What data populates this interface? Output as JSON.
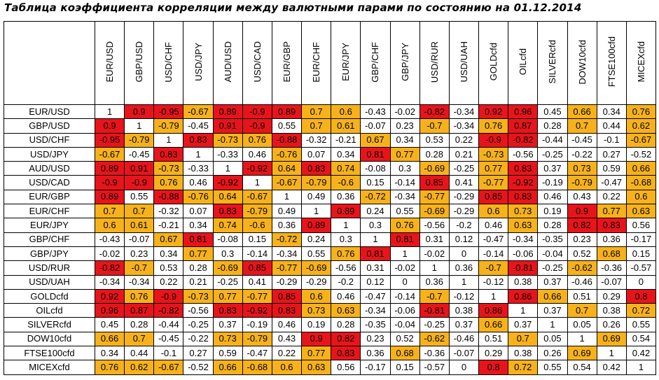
{
  "title": "Таблица коэффициента корреляции между валютными парами по состоянию на 01.12.2014",
  "highlight": [
    {
      "min": 0.8,
      "color": "#e8141b"
    },
    {
      "min": 0.6,
      "color": "#f7b21b"
    }
  ],
  "table": {
    "columns": [
      "EUR/USD",
      "GBP/USD",
      "USD/CHF",
      "USD/JPY",
      "AUD/USD",
      "USD/CAD",
      "EUR/GBP",
      "EUR/CHF",
      "EUR/JPY",
      "GBP/CHF",
      "GBP/JPY",
      "USD/RUR",
      "USD/UAH",
      "GOLDcfd",
      "OILcfd",
      "SILVERcfd",
      "DOW10cfd",
      "FTSE100cfd",
      "MICEXcfd"
    ],
    "rows": [
      {
        "label": "EUR/USD",
        "values": [
          1,
          0.9,
          -0.95,
          -0.67,
          0.89,
          -0.9,
          0.89,
          0.7,
          0.6,
          -0.43,
          -0.02,
          -0.82,
          -0.34,
          0.92,
          0.96,
          0.45,
          0.66,
          0.34,
          0.76
        ]
      },
      {
        "label": "GBP/USD",
        "values": [
          0.9,
          1,
          -0.79,
          -0.45,
          0.91,
          -0.9,
          0.55,
          0.7,
          0.61,
          -0.07,
          0.23,
          -0.7,
          -0.34,
          0.76,
          0.87,
          0.28,
          0.7,
          0.44,
          0.62
        ]
      },
      {
        "label": "USD/CHF",
        "values": [
          -0.95,
          -0.79,
          1,
          0.83,
          -0.73,
          0.76,
          -0.88,
          -0.32,
          -0.21,
          0.67,
          0.34,
          0.53,
          0.22,
          -0.9,
          -0.82,
          -0.44,
          -0.45,
          -0.1,
          -0.67
        ]
      },
      {
        "label": "USD/JPY",
        "values": [
          -0.67,
          -0.45,
          0.83,
          1,
          -0.33,
          0.46,
          -0.76,
          0.07,
          0.34,
          0.81,
          0.77,
          0.28,
          0.21,
          -0.73,
          -0.56,
          -0.25,
          -0.22,
          0.27,
          -0.52
        ]
      },
      {
        "label": "AUD/USD",
        "values": [
          0.89,
          0.91,
          -0.73,
          -0.33,
          1,
          -0.92,
          0.64,
          0.83,
          0.74,
          -0.08,
          0.3,
          -0.69,
          -0.25,
          0.77,
          0.83,
          0.37,
          0.73,
          0.59,
          0.66
        ]
      },
      {
        "label": "USD/CAD",
        "values": [
          -0.9,
          -0.9,
          0.76,
          0.46,
          -0.92,
          1,
          -0.67,
          -0.79,
          -0.6,
          0.15,
          -0.14,
          0.85,
          0.41,
          -0.77,
          -0.92,
          -0.19,
          -0.79,
          -0.47,
          -0.68
        ]
      },
      {
        "label": "EUR/GBP",
        "values": [
          0.89,
          0.55,
          -0.88,
          -0.76,
          0.64,
          -0.67,
          1,
          0.49,
          0.36,
          -0.72,
          -0.34,
          -0.77,
          -0.29,
          0.85,
          0.83,
          0.46,
          0.43,
          0.22,
          0.6
        ]
      },
      {
        "label": "EUR/CHF",
        "values": [
          0.7,
          0.7,
          -0.32,
          0.07,
          0.83,
          -0.79,
          0.49,
          1,
          0.89,
          0.24,
          0.55,
          -0.69,
          -0.29,
          0.6,
          0.73,
          0.19,
          0.9,
          0.77,
          0.63
        ]
      },
      {
        "label": "EUR/JPY",
        "values": [
          0.6,
          0.61,
          -0.21,
          0.34,
          0.74,
          -0.6,
          0.36,
          0.89,
          1,
          0.3,
          0.76,
          -0.56,
          -0.2,
          0.46,
          0.63,
          0.28,
          0.82,
          0.83,
          0.56
        ]
      },
      {
        "label": "GBP/CHF",
        "values": [
          -0.43,
          -0.07,
          0.67,
          0.81,
          -0.08,
          0.15,
          -0.72,
          0.24,
          0.3,
          1,
          0.81,
          0.31,
          0.12,
          -0.47,
          -0.34,
          -0.35,
          0.23,
          0.36,
          -0.17
        ]
      },
      {
        "label": "GBP/JPY",
        "values": [
          -0.02,
          0.23,
          0.34,
          0.77,
          0.3,
          -0.14,
          -0.34,
          0.55,
          0.76,
          0.81,
          1,
          -0.02,
          0,
          -0.14,
          -0.06,
          -0.04,
          0.52,
          0.68,
          0.15
        ]
      },
      {
        "label": "USD/RUR",
        "values": [
          -0.82,
          -0.7,
          0.53,
          0.28,
          -0.69,
          0.85,
          -0.77,
          -0.69,
          -0.56,
          0.31,
          -0.02,
          1,
          0.36,
          -0.7,
          -0.81,
          -0.25,
          -0.62,
          -0.36,
          -0.57
        ]
      },
      {
        "label": "USD/UAH",
        "values": [
          -0.34,
          -0.34,
          0.22,
          0.21,
          -0.25,
          0.41,
          -0.29,
          -0.29,
          -0.2,
          0.12,
          0,
          0.36,
          1,
          -0.12,
          0.38,
          0.37,
          -0.46,
          -0.07,
          0
        ]
      },
      {
        "label": "GOLDcfd",
        "values": [
          0.92,
          0.76,
          -0.9,
          -0.73,
          0.77,
          -0.77,
          0.85,
          0.6,
          0.46,
          -0.47,
          -0.14,
          -0.7,
          -0.12,
          1,
          0.86,
          0.66,
          0.51,
          0.29,
          0.8
        ]
      },
      {
        "label": "OILcfd",
        "values": [
          0.96,
          0.87,
          -0.82,
          -0.56,
          0.83,
          -0.92,
          0.83,
          0.73,
          0.63,
          -0.34,
          -0.06,
          -0.81,
          0.38,
          0.86,
          1,
          0.37,
          0.7,
          0.38,
          0.72
        ]
      },
      {
        "label": "SILVERcfd",
        "values": [
          0.45,
          0.28,
          -0.44,
          -0.25,
          0.37,
          -0.19,
          0.46,
          0.19,
          0.28,
          -0.35,
          -0.04,
          -0.25,
          0.37,
          0.66,
          0.37,
          1,
          0.05,
          0.26,
          0.55
        ]
      },
      {
        "label": "DOW10cfd",
        "values": [
          0.66,
          0.7,
          -0.45,
          -0.22,
          0.73,
          -0.79,
          0.43,
          0.9,
          0.82,
          0.23,
          0.52,
          -0.62,
          -0.46,
          0.51,
          0.7,
          0.05,
          1,
          0.69,
          0.54
        ]
      },
      {
        "label": "FTSE100cfd",
        "values": [
          0.34,
          0.44,
          -0.1,
          0.27,
          0.59,
          -0.47,
          0.22,
          0.77,
          0.83,
          0.36,
          0.68,
          -0.36,
          -0.07,
          0.29,
          0.38,
          0.26,
          0.69,
          1,
          0.42
        ]
      },
      {
        "label": "MICEXcfd",
        "values": [
          0.76,
          0.62,
          -0.67,
          -0.52,
          0.66,
          -0.68,
          0.6,
          0.63,
          0.56,
          -0.17,
          0.15,
          -0.57,
          0,
          0.8,
          0.72,
          0.55,
          0.54,
          0.42,
          1
        ]
      }
    ]
  }
}
